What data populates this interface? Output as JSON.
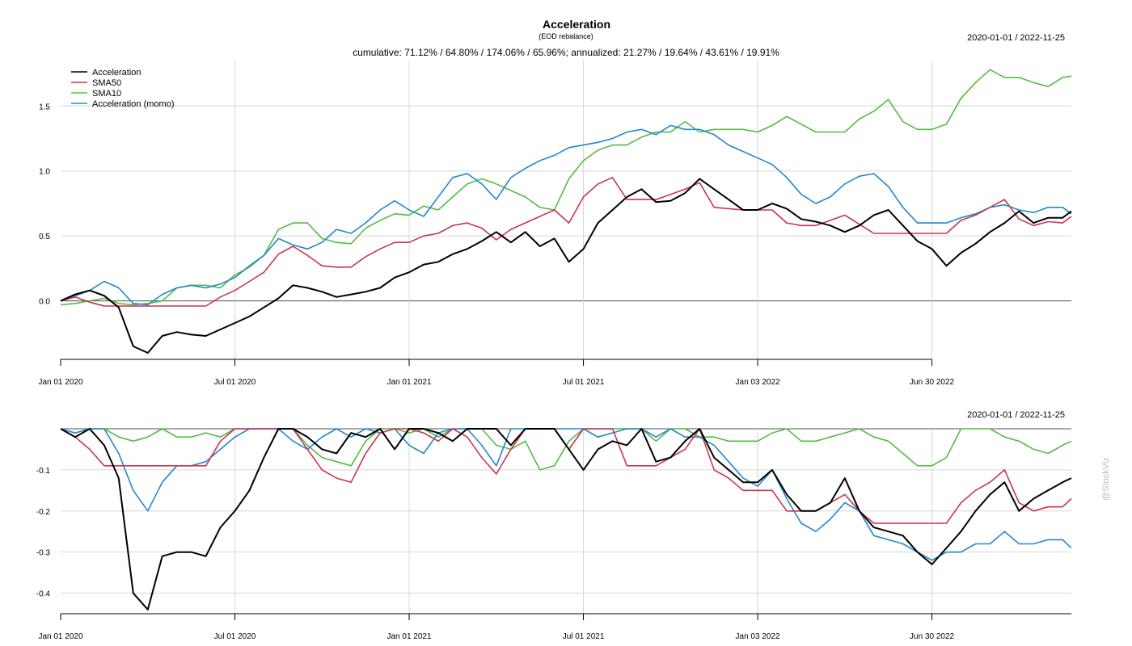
{
  "chart_data": [
    {
      "type": "line",
      "panel": "cumulative",
      "title": "Acceleration",
      "subtitle": "(EOD rebalance)",
      "stats": "cumulative: 71.12% / 64.80% / 174.06% / 65.96%; annualized: 21.27% / 19.64% / 43.61% / 19.91%",
      "date_range": "2020-01-01 / 2022-11-25",
      "xlabel": "",
      "ylabel": "",
      "ylim": [
        -0.45,
        1.85
      ],
      "yticks": [
        0.0,
        0.5,
        1.0,
        1.5
      ],
      "ytick_labels": [
        "0.0",
        "0.5",
        "1.0",
        "1.5"
      ],
      "x_tick_labels": [
        "Jan 01 2020",
        "Jul 01 2020",
        "Jan 01 2021",
        "Jul 01 2021",
        "Jan 03 2022",
        "Jun 30 2022"
      ],
      "x_tick_positions": [
        0,
        6,
        12,
        18,
        24,
        30
      ],
      "x_range": [
        0,
        34.8
      ],
      "x_unit": "months since Jan 01 2020",
      "grid": true,
      "legend": "top-left",
      "x": [
        0,
        0.5,
        1,
        1.5,
        2,
        2.5,
        3,
        3.5,
        4,
        4.5,
        5,
        5.5,
        6,
        6.5,
        7,
        7.5,
        8,
        8.5,
        9,
        9.5,
        10,
        10.5,
        11,
        11.5,
        12,
        12.5,
        13,
        13.5,
        14,
        14.5,
        15,
        15.5,
        16,
        16.5,
        17,
        17.5,
        18,
        18.5,
        19,
        19.5,
        20,
        20.5,
        21,
        21.5,
        22,
        22.5,
        23,
        23.5,
        24,
        24.5,
        25,
        25.5,
        26,
        26.5,
        27,
        27.5,
        28,
        28.5,
        29,
        29.5,
        30,
        30.5,
        31,
        31.5,
        32,
        32.5,
        33,
        33.5,
        34,
        34.5,
        34.8
      ],
      "series": [
        {
          "name": "Acceleration",
          "color": "#000000",
          "values": [
            0.0,
            0.05,
            0.08,
            0.04,
            -0.05,
            -0.35,
            -0.4,
            -0.27,
            -0.24,
            -0.26,
            -0.27,
            -0.22,
            -0.17,
            -0.12,
            -0.05,
            0.02,
            0.12,
            0.1,
            0.07,
            0.03,
            0.05,
            0.07,
            0.1,
            0.18,
            0.22,
            0.28,
            0.3,
            0.36,
            0.4,
            0.46,
            0.53,
            0.45,
            0.53,
            0.42,
            0.48,
            0.3,
            0.4,
            0.6,
            0.7,
            0.8,
            0.86,
            0.76,
            0.77,
            0.83,
            0.94,
            0.86,
            0.78,
            0.7,
            0.7,
            0.75,
            0.71,
            0.63,
            0.61,
            0.58,
            0.53,
            0.58,
            0.66,
            0.7,
            0.58,
            0.46,
            0.4,
            0.27,
            0.37,
            0.44,
            0.53,
            0.6,
            0.69,
            0.6,
            0.64,
            0.64,
            0.69
          ]
        },
        {
          "name": "SMA50",
          "color": "#cc3355",
          "values": [
            0.0,
            0.03,
            -0.01,
            -0.04,
            -0.04,
            -0.04,
            -0.04,
            -0.04,
            -0.04,
            -0.04,
            -0.04,
            0.03,
            0.08,
            0.15,
            0.22,
            0.36,
            0.42,
            0.35,
            0.27,
            0.26,
            0.26,
            0.34,
            0.4,
            0.45,
            0.45,
            0.5,
            0.52,
            0.58,
            0.6,
            0.56,
            0.47,
            0.55,
            0.6,
            0.65,
            0.7,
            0.6,
            0.8,
            0.9,
            0.95,
            0.78,
            0.78,
            0.78,
            0.82,
            0.86,
            0.91,
            0.72,
            0.71,
            0.7,
            0.7,
            0.7,
            0.6,
            0.58,
            0.58,
            0.62,
            0.66,
            0.59,
            0.52,
            0.52,
            0.52,
            0.52,
            0.52,
            0.52,
            0.62,
            0.66,
            0.72,
            0.78,
            0.63,
            0.58,
            0.61,
            0.6,
            0.65
          ]
        },
        {
          "name": "SMA10",
          "color": "#55bb44",
          "values": [
            -0.03,
            -0.02,
            0.0,
            0.02,
            -0.02,
            -0.03,
            -0.02,
            0.0,
            0.1,
            0.12,
            0.12,
            0.1,
            0.2,
            0.26,
            0.35,
            0.55,
            0.6,
            0.6,
            0.48,
            0.45,
            0.44,
            0.56,
            0.62,
            0.67,
            0.66,
            0.73,
            0.7,
            0.8,
            0.9,
            0.94,
            0.9,
            0.85,
            0.8,
            0.72,
            0.7,
            0.94,
            1.08,
            1.16,
            1.2,
            1.2,
            1.26,
            1.3,
            1.3,
            1.38,
            1.3,
            1.32,
            1.32,
            1.32,
            1.3,
            1.35,
            1.42,
            1.36,
            1.3,
            1.3,
            1.3,
            1.4,
            1.46,
            1.55,
            1.38,
            1.32,
            1.32,
            1.36,
            1.56,
            1.68,
            1.78,
            1.72,
            1.72,
            1.68,
            1.65,
            1.72,
            1.73
          ]
        },
        {
          "name": "Acceleration (momo)",
          "color": "#2288cc",
          "values": [
            0.0,
            0.04,
            0.08,
            0.15,
            0.1,
            -0.02,
            -0.03,
            0.05,
            0.1,
            0.12,
            0.1,
            0.13,
            0.18,
            0.27,
            0.35,
            0.48,
            0.43,
            0.4,
            0.45,
            0.55,
            0.52,
            0.6,
            0.7,
            0.77,
            0.7,
            0.65,
            0.8,
            0.95,
            0.98,
            0.9,
            0.78,
            0.95,
            1.02,
            1.08,
            1.12,
            1.18,
            1.2,
            1.22,
            1.25,
            1.3,
            1.32,
            1.28,
            1.35,
            1.32,
            1.32,
            1.28,
            1.2,
            1.15,
            1.1,
            1.05,
            0.95,
            0.82,
            0.75,
            0.8,
            0.9,
            0.96,
            0.98,
            0.88,
            0.72,
            0.6,
            0.6,
            0.6,
            0.64,
            0.67,
            0.72,
            0.74,
            0.7,
            0.68,
            0.72,
            0.72,
            0.67
          ]
        }
      ]
    },
    {
      "type": "line",
      "panel": "drawdown",
      "title": "",
      "date_range": "2020-01-01 / 2022-11-25",
      "xlabel": "",
      "ylabel": "",
      "ylim": [
        -0.45,
        0.0
      ],
      "yticks": [
        -0.1,
        -0.2,
        -0.3,
        -0.4
      ],
      "ytick_labels": [
        "-0.1",
        "-0.2",
        "-0.3",
        "-0.4"
      ],
      "x_tick_labels": [
        "Jan 01 2020",
        "Jul 01 2020",
        "Jan 01 2021",
        "Jul 01 2021",
        "Jan 03 2022",
        "Jun 30 2022"
      ],
      "x_tick_positions": [
        0,
        6,
        12,
        18,
        24,
        30
      ],
      "x_range": [
        0,
        34.8
      ],
      "x_unit": "months since Jan 01 2020",
      "grid": true,
      "x": [
        0,
        0.5,
        1,
        1.5,
        2,
        2.5,
        3,
        3.5,
        4,
        4.5,
        5,
        5.5,
        6,
        6.5,
        7,
        7.5,
        8,
        8.5,
        9,
        9.5,
        10,
        10.5,
        11,
        11.5,
        12,
        12.5,
        13,
        13.5,
        14,
        14.5,
        15,
        15.5,
        16,
        16.5,
        17,
        17.5,
        18,
        18.5,
        19,
        19.5,
        20,
        20.5,
        21,
        21.5,
        22,
        22.5,
        23,
        23.5,
        24,
        24.5,
        25,
        25.5,
        26,
        26.5,
        27,
        27.5,
        28,
        28.5,
        29,
        29.5,
        30,
        30.5,
        31,
        31.5,
        32,
        32.5,
        33,
        33.5,
        34,
        34.5,
        34.8
      ],
      "series": [
        {
          "name": "Acceleration",
          "color": "#000000",
          "values": [
            0.0,
            -0.02,
            0.0,
            -0.04,
            -0.12,
            -0.4,
            -0.44,
            -0.31,
            -0.3,
            -0.3,
            -0.31,
            -0.24,
            -0.2,
            -0.15,
            -0.07,
            0.0,
            0.0,
            -0.02,
            -0.05,
            -0.06,
            -0.01,
            -0.02,
            0.0,
            -0.05,
            0.0,
            0.0,
            -0.01,
            -0.03,
            0.0,
            0.0,
            0.0,
            -0.04,
            0.0,
            0.0,
            0.0,
            -0.05,
            -0.1,
            -0.05,
            -0.03,
            -0.04,
            0.0,
            -0.08,
            -0.07,
            -0.03,
            0.0,
            -0.07,
            -0.1,
            -0.13,
            -0.13,
            -0.1,
            -0.16,
            -0.2,
            -0.2,
            -0.18,
            -0.12,
            -0.2,
            -0.24,
            -0.25,
            -0.26,
            -0.3,
            -0.33,
            -0.29,
            -0.25,
            -0.2,
            -0.16,
            -0.13,
            -0.2,
            -0.17,
            -0.15,
            -0.13,
            -0.12
          ]
        },
        {
          "name": "SMA50",
          "color": "#cc3355",
          "values": [
            0.0,
            -0.02,
            -0.05,
            -0.09,
            -0.09,
            -0.09,
            -0.09,
            -0.09,
            -0.09,
            -0.09,
            -0.09,
            -0.03,
            0.0,
            0.0,
            0.0,
            0.0,
            0.0,
            -0.05,
            -0.1,
            -0.12,
            -0.13,
            -0.06,
            -0.01,
            0.0,
            0.0,
            -0.01,
            -0.03,
            0.0,
            -0.02,
            -0.07,
            -0.11,
            -0.05,
            0.0,
            0.0,
            0.0,
            -0.05,
            0.0,
            0.0,
            0.0,
            -0.09,
            -0.09,
            -0.09,
            -0.07,
            -0.05,
            0.0,
            -0.1,
            -0.12,
            -0.15,
            -0.15,
            -0.15,
            -0.2,
            -0.2,
            -0.2,
            -0.18,
            -0.16,
            -0.2,
            -0.23,
            -0.23,
            -0.23,
            -0.23,
            -0.23,
            -0.23,
            -0.18,
            -0.15,
            -0.13,
            -0.1,
            -0.18,
            -0.2,
            -0.19,
            -0.19,
            -0.17
          ]
        },
        {
          "name": "SMA10",
          "color": "#55bb44",
          "values": [
            0.0,
            -0.01,
            0.0,
            0.0,
            -0.02,
            -0.03,
            -0.02,
            0.0,
            -0.02,
            -0.02,
            -0.01,
            -0.02,
            0.0,
            0.0,
            0.0,
            0.0,
            0.0,
            -0.04,
            -0.07,
            -0.08,
            -0.09,
            -0.03,
            0.0,
            0.0,
            -0.01,
            0.0,
            -0.02,
            0.0,
            0.0,
            0.0,
            -0.04,
            -0.05,
            -0.03,
            -0.1,
            -0.09,
            -0.03,
            0.0,
            0.0,
            0.0,
            0.0,
            0.0,
            -0.03,
            0.0,
            0.0,
            -0.02,
            -0.02,
            -0.03,
            -0.03,
            -0.03,
            -0.01,
            0.0,
            -0.03,
            -0.03,
            -0.02,
            -0.01,
            0.0,
            -0.02,
            -0.03,
            -0.06,
            -0.09,
            -0.09,
            -0.07,
            0.0,
            0.0,
            0.0,
            -0.02,
            -0.03,
            -0.05,
            -0.06,
            -0.04,
            -0.03
          ]
        },
        {
          "name": "Acceleration (momo)",
          "color": "#2288cc",
          "values": [
            0.0,
            -0.01,
            0.0,
            0.0,
            -0.06,
            -0.15,
            -0.2,
            -0.13,
            -0.09,
            -0.09,
            -0.08,
            -0.05,
            -0.02,
            0.0,
            0.0,
            0.0,
            -0.03,
            -0.05,
            -0.02,
            0.0,
            -0.02,
            0.0,
            -0.01,
            0.0,
            -0.04,
            -0.06,
            -0.01,
            0.0,
            0.0,
            -0.04,
            -0.09,
            0.0,
            0.0,
            0.0,
            0.0,
            0.0,
            0.0,
            -0.02,
            -0.01,
            0.0,
            0.0,
            -0.02,
            0.0,
            -0.02,
            -0.02,
            -0.04,
            -0.08,
            -0.12,
            -0.14,
            -0.1,
            -0.17,
            -0.23,
            -0.25,
            -0.22,
            -0.18,
            -0.2,
            -0.26,
            -0.27,
            -0.28,
            -0.3,
            -0.32,
            -0.3,
            -0.3,
            -0.28,
            -0.28,
            -0.25,
            -0.28,
            -0.28,
            -0.27,
            -0.27,
            -0.29
          ]
        }
      ]
    }
  ],
  "legend_items": [
    {
      "label": "Acceleration",
      "color": "#000000"
    },
    {
      "label": "SMA50",
      "color": "#cc3355"
    },
    {
      "label": "SMA10",
      "color": "#55bb44"
    },
    {
      "label": "Acceleration (momo)",
      "color": "#2288cc"
    }
  ],
  "watermark": "@StockViz"
}
